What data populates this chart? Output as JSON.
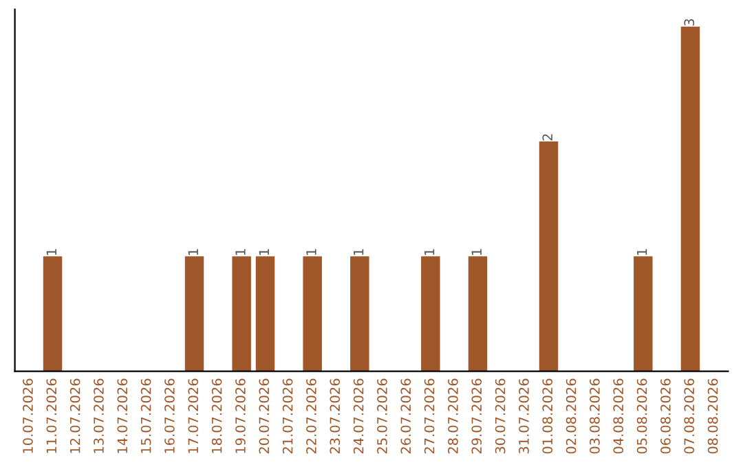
{
  "chart_data": {
    "type": "bar",
    "categories": [
      "10.07.2026",
      "11.07.2026",
      "12.07.2026",
      "13.07.2026",
      "14.07.2026",
      "15.07.2026",
      "16.07.2026",
      "17.07.2026",
      "18.07.2026",
      "19.07.2026",
      "20.07.2026",
      "21.07.2026",
      "22.07.2026",
      "23.07.2026",
      "24.07.2026",
      "25.07.2026",
      "26.07.2026",
      "27.07.2026",
      "28.07.2026",
      "29.07.2026",
      "30.07.2026",
      "31.07.2026",
      "01.08.2026",
      "02.08.2026",
      "03.08.2026",
      "04.08.2026",
      "05.08.2026",
      "06.08.2026",
      "07.08.2026",
      "08.08.2026"
    ],
    "values": [
      0,
      1,
      0,
      0,
      0,
      0,
      0,
      1,
      0,
      1,
      1,
      0,
      1,
      0,
      1,
      0,
      0,
      1,
      0,
      1,
      0,
      0,
      2,
      0,
      0,
      0,
      1,
      0,
      3,
      0
    ],
    "value_labels": [
      null,
      "1",
      null,
      null,
      null,
      null,
      null,
      "1",
      null,
      "1",
      "1",
      null,
      "1",
      null,
      "1",
      null,
      null,
      "1",
      null,
      "1",
      null,
      null,
      "2",
      null,
      null,
      null,
      "1",
      null,
      "3",
      null
    ],
    "color": "#a0582a",
    "grid": false,
    "legend": false
  }
}
